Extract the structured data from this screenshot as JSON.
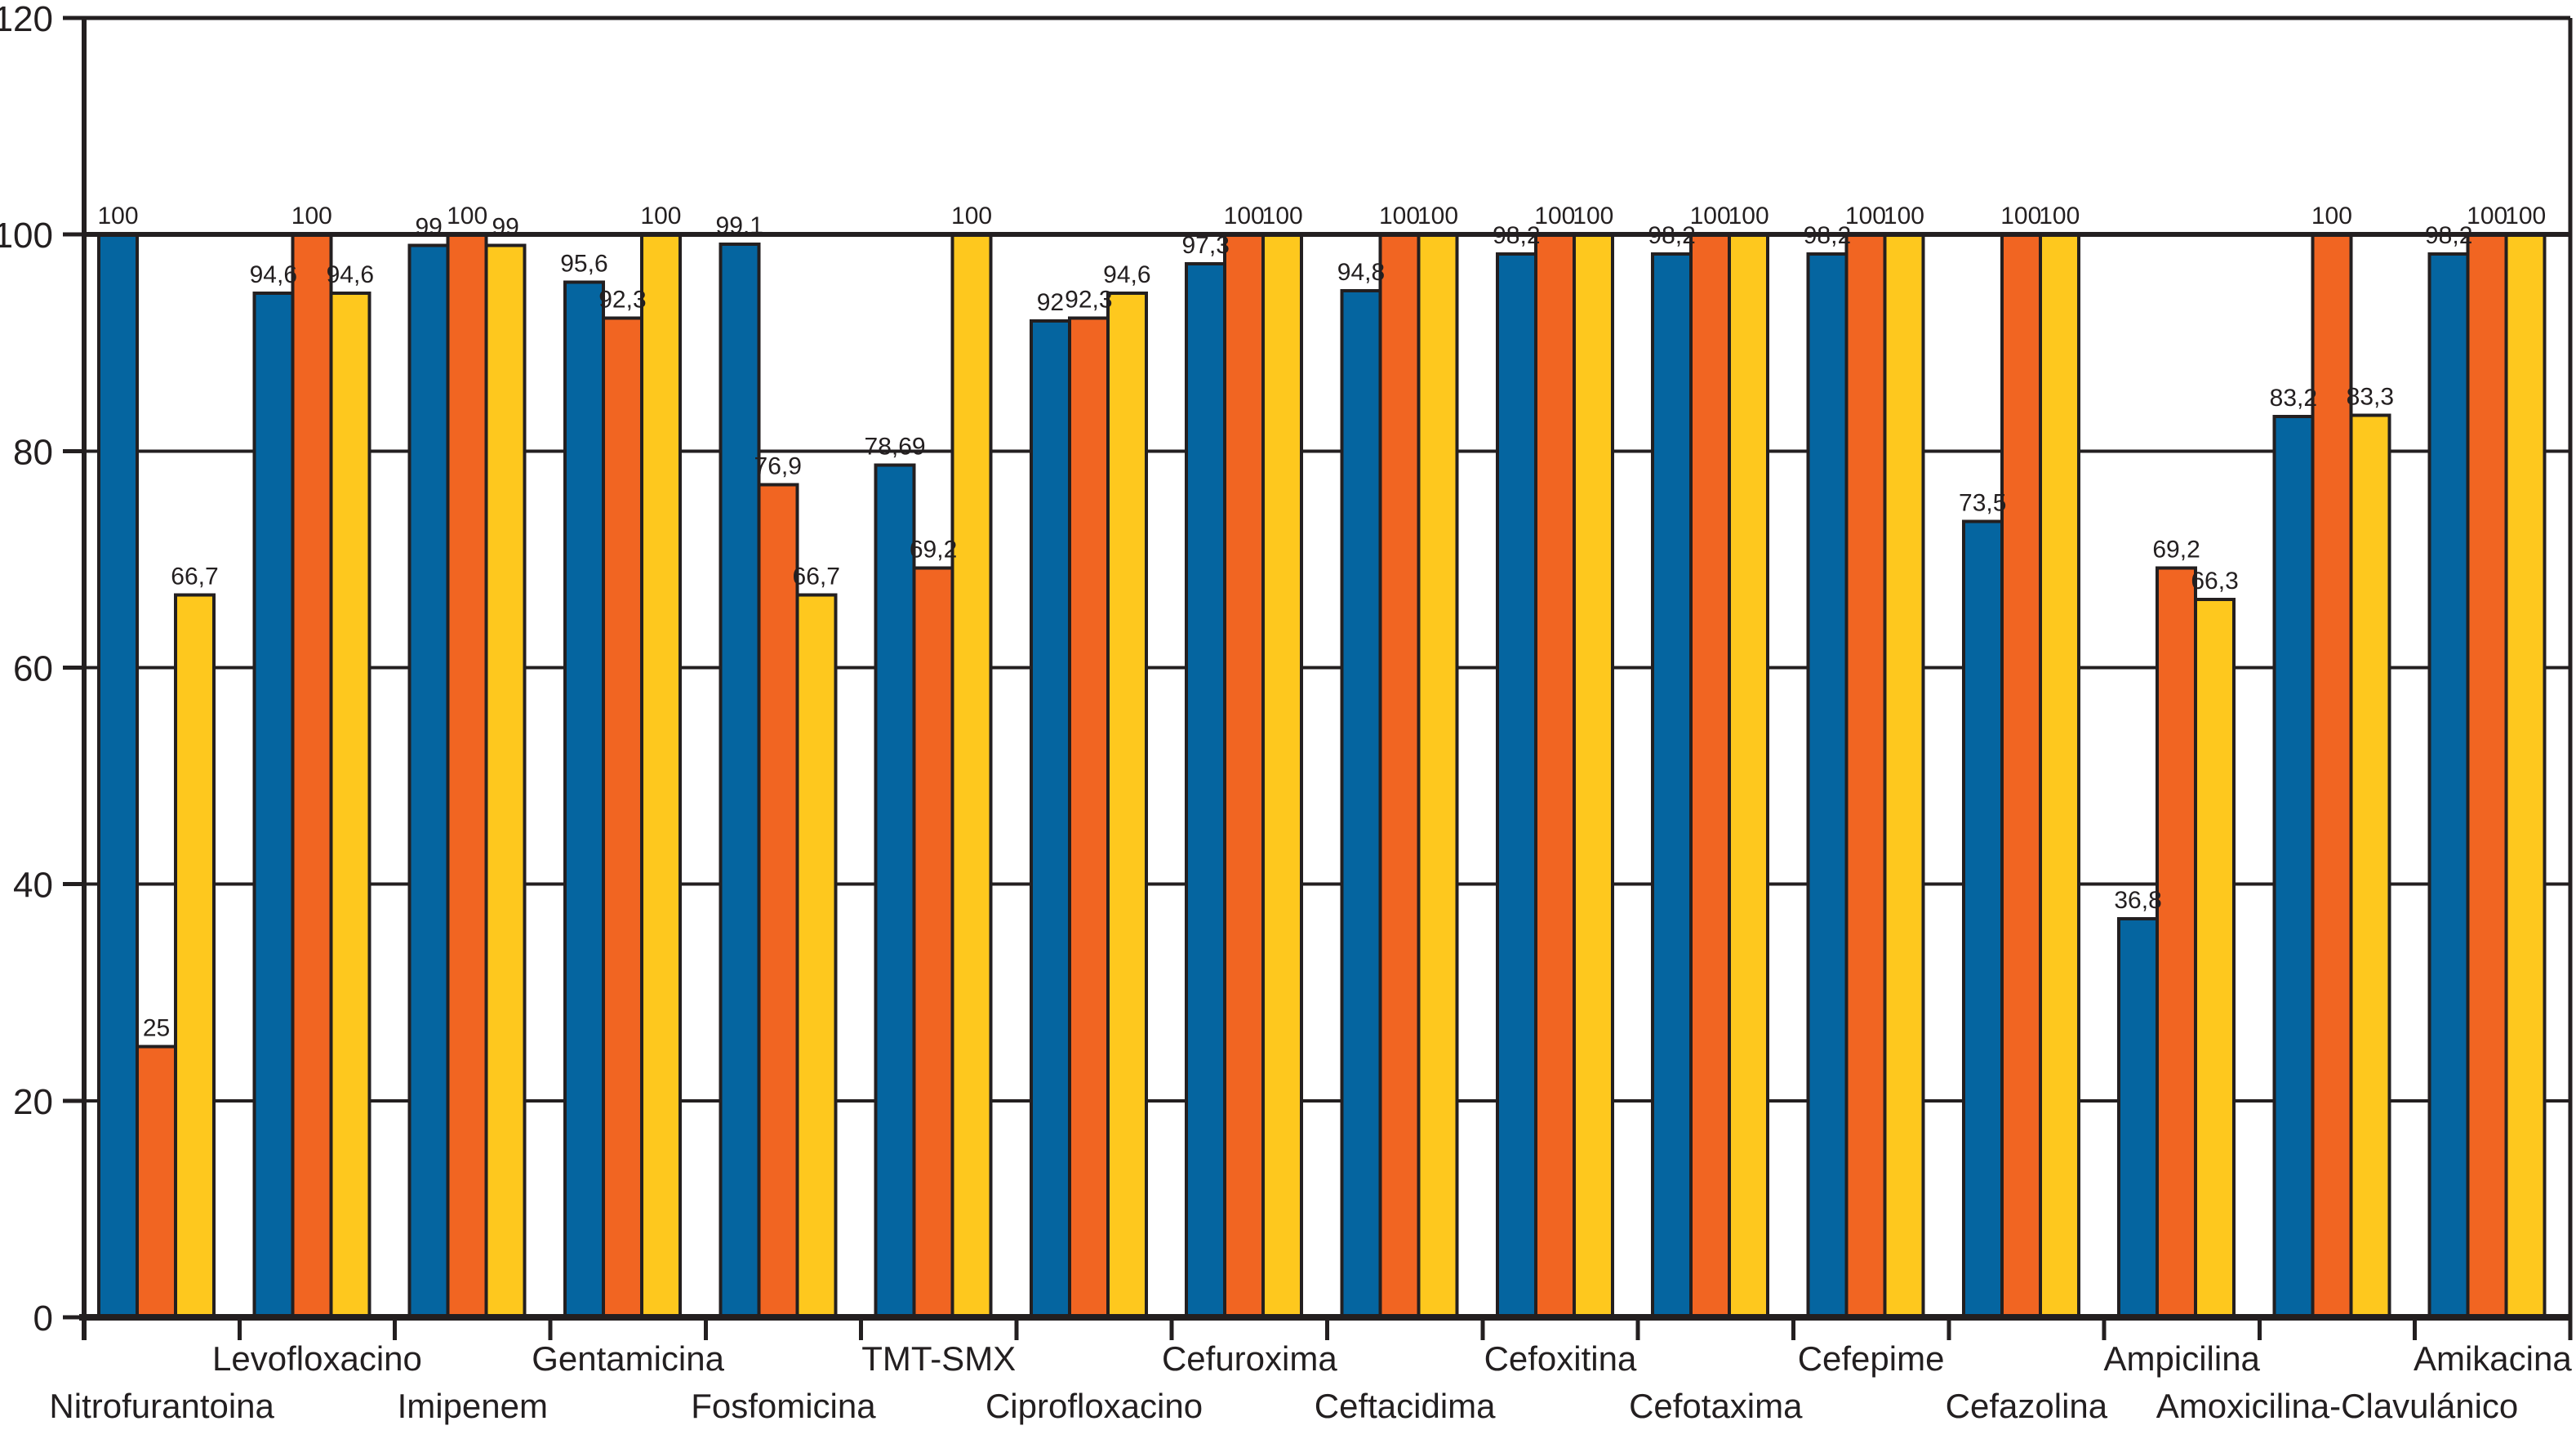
{
  "chart_data": {
    "type": "bar",
    "title": "",
    "xlabel": "",
    "ylabel": "",
    "ylim": [
      0,
      120
    ],
    "grid": true,
    "legend": "none",
    "decimal_separator": ",",
    "y_ticks": [
      "0",
      "20",
      "40",
      "60",
      "80",
      "100",
      "120"
    ],
    "categories": [
      "Nitrofurantoina",
      "Levofloxacino",
      "Imipenem",
      "Gentamicina",
      "Fosfomicina",
      "TMT-SMX",
      "Ciprofloxacino",
      "Cefuroxima",
      "Ceftacidima",
      "Cefoxitina",
      "Cefotaxima",
      "Cefepime",
      "Cefazolina",
      "Ampicilina",
      "Amoxicilina-Clavulánico",
      "Amikacina"
    ],
    "series": [
      {
        "name": "series-blue",
        "color": "#0565A0",
        "values": [
          100,
          94.6,
          99,
          95.6,
          99.1,
          78.69,
          92,
          97.3,
          94.8,
          98.2,
          98.2,
          98.2,
          73.5,
          36.8,
          83.2,
          98.2
        ]
      },
      {
        "name": "series-orange",
        "color": "#F16522",
        "values": [
          25,
          100,
          100,
          92.3,
          76.9,
          69.2,
          92.3,
          100,
          100,
          100,
          100,
          100,
          100,
          69.2,
          100,
          100
        ]
      },
      {
        "name": "series-yellow",
        "color": "#FEC81E",
        "values": [
          66.7,
          94.6,
          99,
          100,
          66.7,
          100,
          94.6,
          100,
          100,
          100,
          100,
          100,
          100,
          66.3,
          83.3,
          100
        ]
      }
    ],
    "value_labels": [
      [
        "100",
        "25",
        "66,7"
      ],
      [
        "94,6",
        "100",
        "94,6"
      ],
      [
        "99",
        "100",
        "99"
      ],
      [
        "95,6",
        "92,3",
        "100"
      ],
      [
        "99,1",
        "76,9",
        "66,7"
      ],
      [
        "78,69",
        "69,2",
        "100"
      ],
      [
        "92",
        "92,3",
        "94,6"
      ],
      [
        "97,3",
        "100",
        "100"
      ],
      [
        "94,8",
        "100",
        "100"
      ],
      [
        "98,2",
        "100",
        "100"
      ],
      [
        "98,2",
        "100",
        "100"
      ],
      [
        "98,2",
        "100",
        "100"
      ],
      [
        "73,5",
        "100",
        "100"
      ],
      [
        "36,8",
        "69,2",
        "66,3"
      ],
      [
        "83,2",
        "100",
        "83,3"
      ],
      [
        "98,2",
        "100",
        "100"
      ]
    ],
    "axis_color": "#231F20",
    "bar_outline_color": "#231F20",
    "background_color": "#FFFFFF"
  }
}
